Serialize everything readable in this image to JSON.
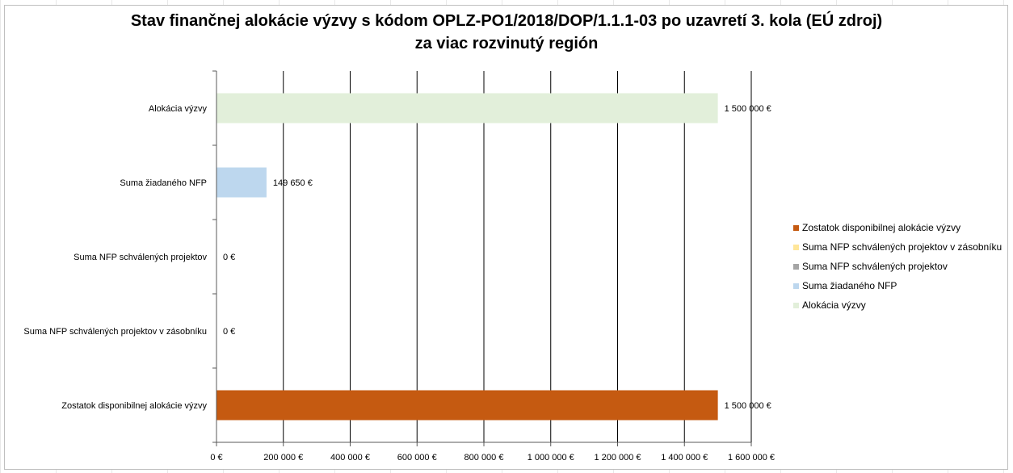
{
  "chart_data": {
    "type": "bar",
    "orientation": "horizontal",
    "title_line1": "Stav finančnej alokácie výzvy s kódom OPLZ-PO1/2018/DOP/1.1.1-03 po uzavretí 3. kola (EÚ zdroj)",
    "title_line2": "za viac rozvinutý región",
    "categories": [
      "Alokácia výzvy",
      "Suma žiadaného NFP",
      "Suma NFP schválených projektov",
      "Suma NFP schválených projektov v zásobníku",
      "Zostatok disponibilnej alokácie výzvy"
    ],
    "values": [
      1500000,
      149650,
      0,
      0,
      1500000
    ],
    "value_labels": [
      "1 500 000 €",
      "149 650 €",
      "0 €",
      "0 €",
      "1 500 000 €"
    ],
    "colors": [
      "#e2efda",
      "#bdd7ee",
      "#a5a5a5",
      "#ffe699",
      "#c55a11"
    ],
    "xlim": [
      0,
      1600000
    ],
    "x_ticks": [
      0,
      200000,
      400000,
      600000,
      800000,
      1000000,
      1200000,
      1400000,
      1600000
    ],
    "x_tick_labels": [
      "0 €",
      "200 000 €",
      "400 000 €",
      "600 000 €",
      "800 000 €",
      "1 000 000 €",
      "1 200 000 €",
      "1 400 000 €",
      "1 600 000 €"
    ],
    "grid": true,
    "legend_position": "right",
    "legend": [
      {
        "label": "Zostatok disponibilnej alokácie výzvy",
        "color": "#c55a11"
      },
      {
        "label": "Suma NFP schválených projektov v zásobníku",
        "color": "#ffe699"
      },
      {
        "label": "Suma NFP schválených projektov",
        "color": "#a5a5a5"
      },
      {
        "label": "Suma žiadaného NFP",
        "color": "#bdd7ee"
      },
      {
        "label": "Alokácia výzvy",
        "color": "#e2efda"
      }
    ]
  }
}
